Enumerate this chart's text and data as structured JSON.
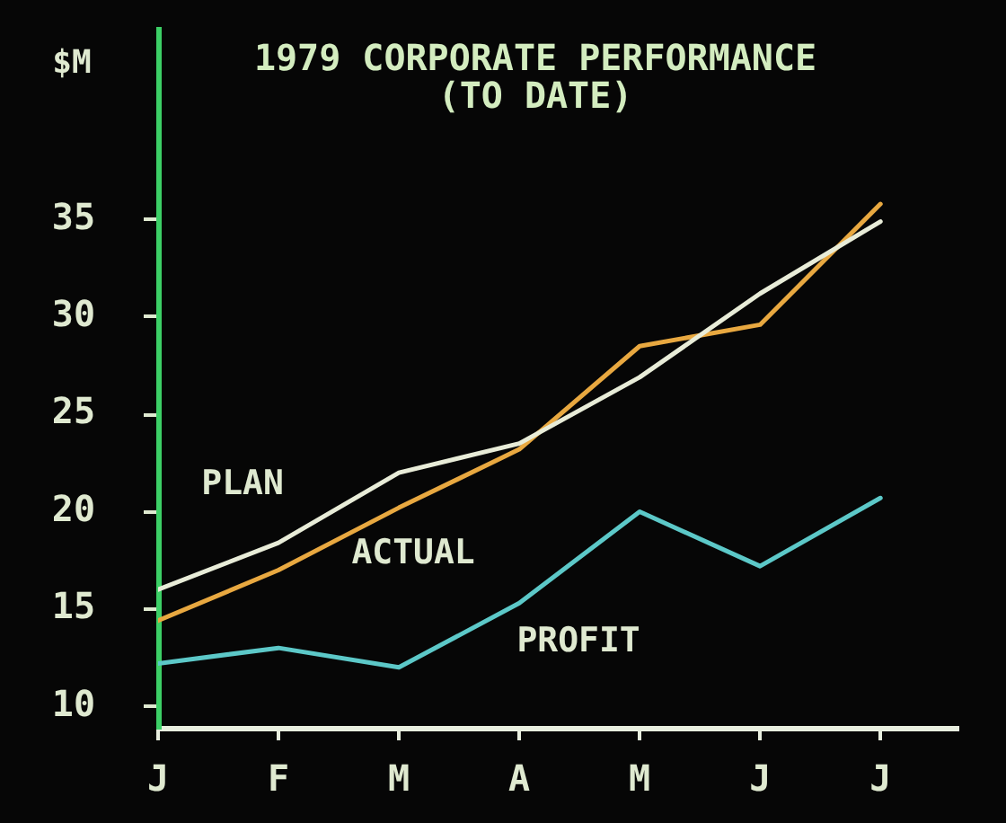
{
  "chart_data": {
    "type": "line",
    "title": "1979 CORPORATE PERFORMANCE",
    "subtitle": "(TO DATE)",
    "ylabel": "$M",
    "categories": [
      "J",
      "F",
      "M",
      "A",
      "M",
      "J",
      "J"
    ],
    "series": [
      {
        "name": "PLAN",
        "color": "#e8ecd8",
        "values": [
          16.0,
          18.4,
          22.0,
          23.5,
          26.9,
          31.2,
          34.9
        ]
      },
      {
        "name": "ACTUAL",
        "color": "#e8a840",
        "values": [
          14.4,
          17.0,
          20.2,
          23.2,
          28.5,
          29.6,
          35.8
        ]
      },
      {
        "name": "PROFIT",
        "color": "#5cc8c8",
        "values": [
          12.2,
          13.0,
          12.0,
          15.3,
          20.0,
          17.2,
          20.7
        ]
      }
    ],
    "ylim": [
      8.9,
      44.8
    ],
    "yticks": [
      10,
      15,
      20,
      25,
      30,
      35
    ],
    "grid": false,
    "legend": false,
    "marker": "none"
  }
}
